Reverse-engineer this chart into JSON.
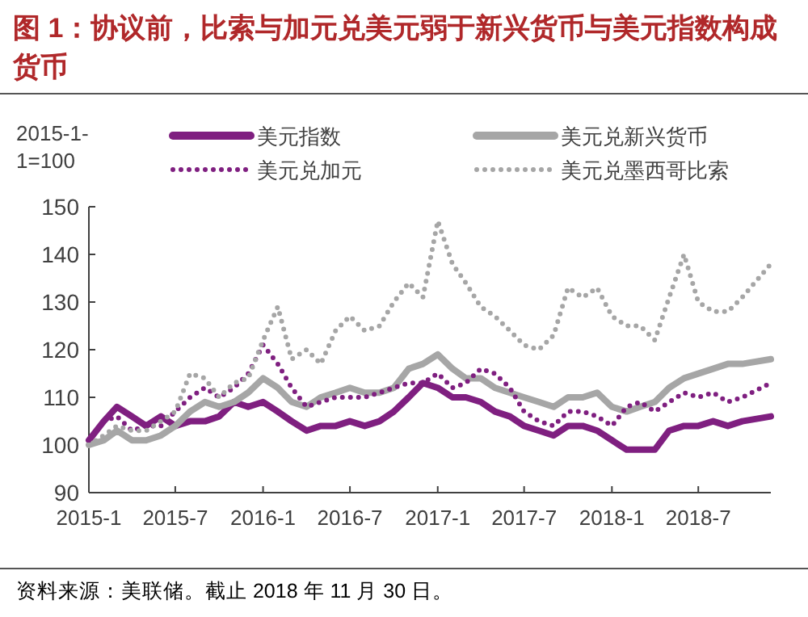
{
  "chart_data": {
    "type": "line",
    "title": "图 1：协议前，比索与加元兑美元弱于新兴货币与美元指数构成货币",
    "ylabel": "2015-1-1=100",
    "annotations": [
      "资料来源：美联储。截止 2018 年 11 月 30 日。"
    ],
    "x": [
      "2015-01-01",
      "2015-02",
      "2015-03",
      "2015-04",
      "2015-05",
      "2015-06",
      "2015-07",
      "2015-08",
      "2015-09",
      "2015-10",
      "2015-11",
      "2015-12",
      "2016-01",
      "2016-02",
      "2016-03",
      "2016-04",
      "2016-05",
      "2016-06",
      "2016-07",
      "2016-08",
      "2016-09",
      "2016-10",
      "2016-11",
      "2016-12",
      "2017-01",
      "2017-02",
      "2017-03",
      "2017-04",
      "2017-05",
      "2017-06",
      "2017-07",
      "2017-08",
      "2017-09",
      "2017-10",
      "2017-11",
      "2017-12",
      "2018-01",
      "2018-02",
      "2018-03",
      "2018-04",
      "2018-05",
      "2018-06",
      "2018-07",
      "2018-08",
      "2018-09",
      "2018-10",
      "2018-11-30"
    ],
    "series": [
      {
        "name": "美元指数",
        "color": "#7f1f80",
        "line_style": "solid",
        "values": [
          101,
          105,
          108,
          106,
          104,
          106,
          104,
          105,
          105,
          106,
          109,
          108,
          109,
          107,
          105,
          103,
          104,
          104,
          105,
          104,
          105,
          107,
          110,
          113,
          112,
          110,
          110,
          109,
          107,
          106,
          104,
          103,
          102,
          104,
          104,
          103,
          101,
          99,
          99,
          99,
          103,
          104,
          104,
          105,
          104,
          105,
          106
        ]
      },
      {
        "name": "美元兑新兴货币",
        "color": "#a6a6a6",
        "line_style": "solid",
        "values": [
          100,
          101,
          103,
          101,
          101,
          102,
          104,
          107,
          109,
          108,
          109,
          111,
          114,
          112,
          109,
          108,
          110,
          111,
          112,
          111,
          111,
          112,
          116,
          117,
          119,
          116,
          114,
          114,
          112,
          111,
          110,
          109,
          108,
          110,
          110,
          111,
          108,
          107,
          108,
          109,
          112,
          114,
          115,
          116,
          117,
          117,
          118
        ]
      },
      {
        "name": "美元兑加元",
        "color": "#7f1f80",
        "line_style": "dotted",
        "values": [
          101,
          105,
          106,
          103,
          104,
          104,
          107,
          110,
          112,
          110,
          112,
          115,
          121,
          117,
          112,
          108,
          109,
          110,
          110,
          110,
          111,
          112,
          113,
          113,
          115,
          112,
          113,
          116,
          115,
          112,
          107,
          105,
          104,
          107,
          107,
          106,
          104,
          108,
          109,
          107,
          109,
          111,
          110,
          111,
          109,
          110,
          113
        ]
      },
      {
        "name": "美元兑墨西哥比索",
        "color": "#a6a6a6",
        "line_style": "dotted",
        "values": [
          100,
          102,
          104,
          103,
          103,
          105,
          107,
          115,
          114,
          110,
          113,
          114,
          122,
          129,
          118,
          120,
          117,
          124,
          127,
          124,
          125,
          130,
          134,
          131,
          147,
          138,
          134,
          129,
          127,
          124,
          121,
          120,
          123,
          133,
          131,
          133,
          127,
          125,
          125,
          122,
          131,
          140,
          130,
          128,
          128,
          131,
          138
        ]
      }
    ],
    "xlim": [
      "2015-01-01",
      "2018-11-30"
    ],
    "xticks": [
      {
        "value": "2015-01-01",
        "label": "2015-1"
      },
      {
        "value": "2015-07-01",
        "label": "2015-7"
      },
      {
        "value": "2016-01-01",
        "label": "2016-1"
      },
      {
        "value": "2016-07-01",
        "label": "2016-7"
      },
      {
        "value": "2017-01-01",
        "label": "2017-1"
      },
      {
        "value": "2017-07-01",
        "label": "2017-7"
      },
      {
        "value": "2018-01-01",
        "label": "2018-1"
      },
      {
        "value": "2018-07-01",
        "label": "2018-7"
      }
    ],
    "ylim": [
      90,
      150
    ],
    "yticks": [
      90,
      100,
      110,
      120,
      130,
      140,
      150
    ],
    "legend": "top",
    "grid": false
  }
}
